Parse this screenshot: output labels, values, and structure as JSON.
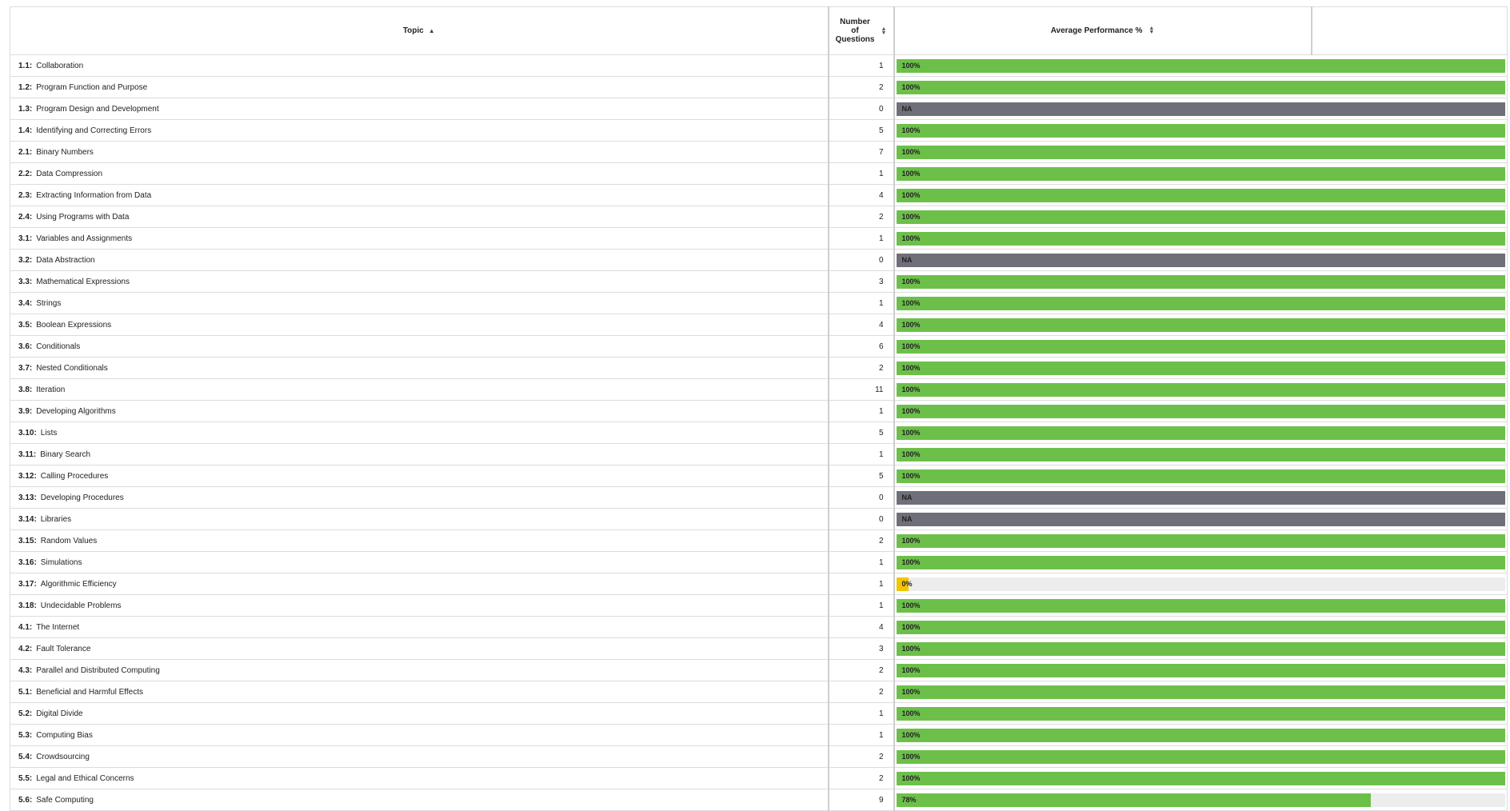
{
  "header": {
    "topic": "Topic",
    "count_lines": [
      "Number",
      "of",
      "Questions"
    ],
    "performance": "Average Performance %"
  },
  "colors": {
    "good": "#6cc04a",
    "na": "#6f6f7a",
    "low": "#f3c400",
    "track": "#ededed"
  },
  "rows": [
    {
      "code": "1.1:",
      "name": "Collaboration",
      "count": "1",
      "label": "100%",
      "pct": 100,
      "status": "good"
    },
    {
      "code": "1.2:",
      "name": "Program Function and Purpose",
      "count": "2",
      "label": "100%",
      "pct": 100,
      "status": "good"
    },
    {
      "code": "1.3:",
      "name": "Program Design and Development",
      "count": "0",
      "label": "NA",
      "pct": 100,
      "status": "na"
    },
    {
      "code": "1.4:",
      "name": "Identifying and Correcting Errors",
      "count": "5",
      "label": "100%",
      "pct": 100,
      "status": "good"
    },
    {
      "code": "2.1:",
      "name": "Binary Numbers",
      "count": "7",
      "label": "100%",
      "pct": 100,
      "status": "good"
    },
    {
      "code": "2.2:",
      "name": "Data Compression",
      "count": "1",
      "label": "100%",
      "pct": 100,
      "status": "good"
    },
    {
      "code": "2.3:",
      "name": "Extracting Information from Data",
      "count": "4",
      "label": "100%",
      "pct": 100,
      "status": "good"
    },
    {
      "code": "2.4:",
      "name": "Using Programs with Data",
      "count": "2",
      "label": "100%",
      "pct": 100,
      "status": "good"
    },
    {
      "code": "3.1:",
      "name": "Variables and Assignments",
      "count": "1",
      "label": "100%",
      "pct": 100,
      "status": "good"
    },
    {
      "code": "3.2:",
      "name": "Data Abstraction",
      "count": "0",
      "label": "NA",
      "pct": 100,
      "status": "na"
    },
    {
      "code": "3.3:",
      "name": "Mathematical Expressions",
      "count": "3",
      "label": "100%",
      "pct": 100,
      "status": "good"
    },
    {
      "code": "3.4:",
      "name": "Strings",
      "count": "1",
      "label": "100%",
      "pct": 100,
      "status": "good"
    },
    {
      "code": "3.5:",
      "name": "Boolean Expressions",
      "count": "4",
      "label": "100%",
      "pct": 100,
      "status": "good"
    },
    {
      "code": "3.6:",
      "name": "Conditionals",
      "count": "6",
      "label": "100%",
      "pct": 100,
      "status": "good"
    },
    {
      "code": "3.7:",
      "name": "Nested Conditionals",
      "count": "2",
      "label": "100%",
      "pct": 100,
      "status": "good"
    },
    {
      "code": "3.8:",
      "name": "Iteration",
      "count": "11",
      "label": "100%",
      "pct": 100,
      "status": "good"
    },
    {
      "code": "3.9:",
      "name": "Developing Algorithms",
      "count": "1",
      "label": "100%",
      "pct": 100,
      "status": "good"
    },
    {
      "code": "3.10:",
      "name": "Lists",
      "count": "5",
      "label": "100%",
      "pct": 100,
      "status": "good"
    },
    {
      "code": "3.11:",
      "name": "Binary Search",
      "count": "1",
      "label": "100%",
      "pct": 100,
      "status": "good"
    },
    {
      "code": "3.12:",
      "name": "Calling Procedures",
      "count": "5",
      "label": "100%",
      "pct": 100,
      "status": "good"
    },
    {
      "code": "3.13:",
      "name": "Developing Procedures",
      "count": "0",
      "label": "NA",
      "pct": 100,
      "status": "na"
    },
    {
      "code": "3.14:",
      "name": "Libraries",
      "count": "0",
      "label": "NA",
      "pct": 100,
      "status": "na"
    },
    {
      "code": "3.15:",
      "name": "Random Values",
      "count": "2",
      "label": "100%",
      "pct": 100,
      "status": "good"
    },
    {
      "code": "3.16:",
      "name": "Simulations",
      "count": "1",
      "label": "100%",
      "pct": 100,
      "status": "good"
    },
    {
      "code": "3.17:",
      "name": "Algorithmic Efficiency",
      "count": "1",
      "label": "0%",
      "pct": 2,
      "status": "low"
    },
    {
      "code": "3.18:",
      "name": "Undecidable Problems",
      "count": "1",
      "label": "100%",
      "pct": 100,
      "status": "good"
    },
    {
      "code": "4.1:",
      "name": "The Internet",
      "count": "4",
      "label": "100%",
      "pct": 100,
      "status": "good"
    },
    {
      "code": "4.2:",
      "name": "Fault Tolerance",
      "count": "3",
      "label": "100%",
      "pct": 100,
      "status": "good"
    },
    {
      "code": "4.3:",
      "name": "Parallel and Distributed Computing",
      "count": "2",
      "label": "100%",
      "pct": 100,
      "status": "good"
    },
    {
      "code": "5.1:",
      "name": "Beneficial and Harmful Effects",
      "count": "2",
      "label": "100%",
      "pct": 100,
      "status": "good"
    },
    {
      "code": "5.2:",
      "name": "Digital Divide",
      "count": "1",
      "label": "100%",
      "pct": 100,
      "status": "good"
    },
    {
      "code": "5.3:",
      "name": "Computing Bias",
      "count": "1",
      "label": "100%",
      "pct": 100,
      "status": "good"
    },
    {
      "code": "5.4:",
      "name": "Crowdsourcing",
      "count": "2",
      "label": "100%",
      "pct": 100,
      "status": "good"
    },
    {
      "code": "5.5:",
      "name": "Legal and Ethical Concerns",
      "count": "2",
      "label": "100%",
      "pct": 100,
      "status": "good"
    },
    {
      "code": "5.6:",
      "name": "Safe Computing",
      "count": "9",
      "label": "78%",
      "pct": 78,
      "status": "good"
    }
  ]
}
